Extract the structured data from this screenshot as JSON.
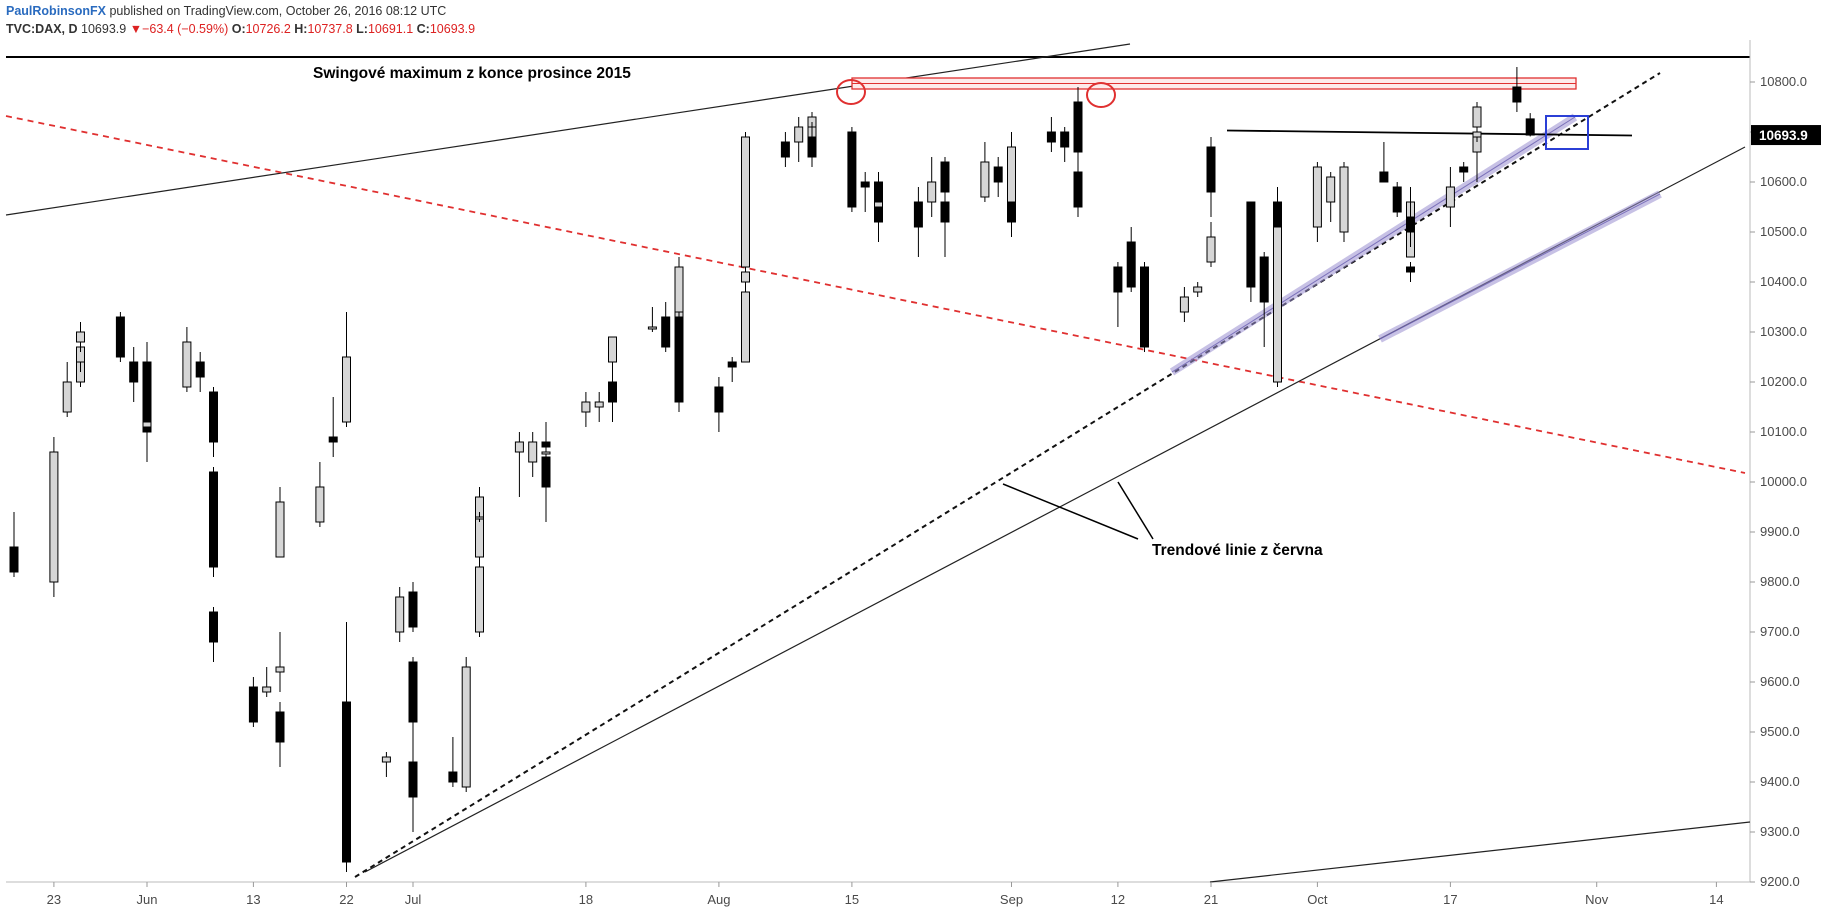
{
  "header": {
    "author": "PaulRobinsonFX",
    "published": "published on TradingView.com, October 26, 2016 08:12 UTC"
  },
  "ohlc": {
    "symbol": "TVC:DAX, D",
    "last": "10693.9",
    "arrow": "▼",
    "change": "−63.4 (−0.59%)",
    "open_label": "O:",
    "open": "10726.2",
    "high_label": "H:",
    "high": "10737.8",
    "low_label": "L:",
    "low": "10691.1",
    "close_label": "C:",
    "close": "10693.9"
  },
  "colors": {
    "bull_fill": "#d6d6d6",
    "bear_fill": "#000000",
    "red_zone": "#e03030",
    "red_dashed": "#e03030",
    "channel": "#9a8fd0",
    "blue_box": "#2b3fd6",
    "price_tag": "#000000"
  },
  "chart_data": {
    "type": "candlestick",
    "symbol": "TVC:DAX",
    "interval": "D",
    "ylim": [
      9200,
      10850
    ],
    "y_ticks": [
      "10800.0",
      "10700.0",
      "10600.0",
      "10500.0",
      "10400.0",
      "10300.0",
      "10200.0",
      "10100.0",
      "10000.0",
      "9900.0",
      "9800.0",
      "9700.0",
      "9600.0",
      "9500.0",
      "9400.0",
      "9300.0",
      "9200.0"
    ],
    "x_ticks": [
      {
        "label": "23",
        "date": "2016-05-23"
      },
      {
        "label": "Jun",
        "date": "2016-06-01"
      },
      {
        "label": "13",
        "date": "2016-06-13"
      },
      {
        "label": "22",
        "date": "2016-06-22"
      },
      {
        "label": "Jul",
        "date": "2016-07-01"
      },
      {
        "label": "18",
        "date": "2016-07-18"
      },
      {
        "label": "Aug",
        "date": "2016-08-01"
      },
      {
        "label": "15",
        "date": "2016-08-15"
      },
      {
        "label": "Sep",
        "date": "2016-09-01"
      },
      {
        "label": "12",
        "date": "2016-09-12"
      },
      {
        "label": "21",
        "date": "2016-09-21"
      },
      {
        "label": "Oct",
        "date": "2016-10-03"
      },
      {
        "label": "17",
        "date": "2016-10-17"
      },
      {
        "label": "Nov",
        "date": "2016-11-01"
      },
      {
        "label": "14",
        "date": "2016-11-14"
      }
    ],
    "last_price_label": "10693.9",
    "candles": [
      {
        "date": "2016-05-20",
        "o": 9870,
        "h": 9940,
        "l": 9810,
        "c": 9820
      },
      {
        "date": "2016-05-23",
        "o": 9800,
        "h": 10090,
        "l": 9770,
        "c": 10060
      },
      {
        "date": "2016-05-24",
        "o": 10140,
        "h": 10240,
        "l": 10130,
        "c": 10200
      },
      {
        "date": "2016-05-25",
        "o": 10200,
        "h": 10280,
        "l": 10190,
        "c": 10250
      },
      {
        "date": "2016-05-26",
        "o": 10240,
        "h": 10290,
        "l": 10220,
        "c": 10270
      },
      {
        "date": "2016-05-27",
        "o": 10280,
        "h": 10320,
        "l": 10260,
        "c": 10300
      },
      {
        "date": "2016-05-30",
        "o": 10330,
        "h": 10340,
        "l": 10240,
        "c": 10250
      },
      {
        "date": "2016-05-31",
        "o": 10240,
        "h": 10270,
        "l": 10160,
        "c": 10200
      },
      {
        "date": "2016-06-01",
        "o": 10200,
        "h": 10230,
        "l": 10160,
        "c": 10210
      },
      {
        "date": "2016-06-02",
        "o": 10240,
        "h": 10280,
        "l": 10040,
        "c": 10100
      },
      {
        "date": "2016-06-03",
        "o": 10110,
        "h": 10130,
        "l": 10080,
        "c": 10120
      },
      {
        "date": "2016-06-06",
        "o": 10190,
        "h": 10310,
        "l": 10180,
        "c": 10280
      },
      {
        "date": "2016-06-07",
        "o": 10240,
        "h": 10260,
        "l": 10180,
        "c": 10210
      },
      {
        "date": "2016-06-08",
        "o": 10180,
        "h": 10190,
        "l": 10050,
        "c": 10080
      },
      {
        "date": "2016-06-09",
        "o": 10020,
        "h": 10030,
        "l": 9810,
        "c": 9830
      },
      {
        "date": "2016-06-10",
        "o": 9740,
        "h": 9750,
        "l": 9640,
        "c": 9680
      },
      {
        "date": "2016-06-13",
        "o": 9590,
        "h": 9610,
        "l": 9510,
        "c": 9520
      },
      {
        "date": "2016-06-14",
        "o": 9580,
        "h": 9630,
        "l": 9570,
        "c": 9590
      },
      {
        "date": "2016-06-15",
        "o": 9540,
        "h": 9560,
        "l": 9430,
        "c": 9480
      },
      {
        "date": "2016-06-16",
        "o": 9620,
        "h": 9700,
        "l": 9580,
        "c": 9630
      },
      {
        "date": "2016-06-17",
        "o": 9850,
        "h": 9990,
        "l": 9850,
        "c": 9960
      },
      {
        "date": "2016-06-20",
        "o": 9920,
        "h": 10040,
        "l": 9910,
        "c": 9990
      },
      {
        "date": "2016-06-21",
        "o": 10090,
        "h": 10170,
        "l": 10050,
        "c": 10080
      },
      {
        "date": "2016-06-22",
        "o": 10120,
        "h": 10340,
        "l": 10110,
        "c": 10250
      },
      {
        "date": "2016-06-23",
        "o": 9560,
        "h": 9720,
        "l": 9230,
        "c": 9240
      },
      {
        "date": "2016-06-24",
        "o": 9520,
        "h": 9530,
        "l": 9220,
        "c": 9270
      },
      {
        "date": "2016-06-27",
        "o": 9440,
        "h": 9460,
        "l": 9410,
        "c": 9450
      },
      {
        "date": "2016-06-28",
        "o": 9700,
        "h": 9790,
        "l": 9680,
        "c": 9770
      },
      {
        "date": "2016-06-29",
        "o": 9780,
        "h": 9800,
        "l": 9700,
        "c": 9710
      },
      {
        "date": "2016-06-30",
        "o": 9640,
        "h": 9650,
        "l": 9500,
        "c": 9520
      },
      {
        "date": "2016-07-01",
        "o": 9440,
        "h": 9530,
        "l": 9300,
        "c": 9370
      },
      {
        "date": "2016-07-04",
        "o": 9420,
        "h": 9490,
        "l": 9390,
        "c": 9400
      },
      {
        "date": "2016-07-05",
        "o": 9390,
        "h": 9650,
        "l": 9380,
        "c": 9630
      },
      {
        "date": "2016-07-06",
        "o": 9700,
        "h": 9840,
        "l": 9690,
        "c": 9830
      },
      {
        "date": "2016-07-07",
        "o": 9850,
        "h": 9990,
        "l": 9840,
        "c": 9970
      },
      {
        "date": "2016-07-08",
        "o": 9930,
        "h": 9940,
        "l": 9920,
        "c": 9930
      },
      {
        "date": "2016-07-11",
        "o": 10060,
        "h": 10100,
        "l": 9970,
        "c": 10080
      },
      {
        "date": "2016-07-12",
        "o": 10040,
        "h": 10100,
        "l": 10010,
        "c": 10080
      },
      {
        "date": "2016-07-13",
        "o": 10080,
        "h": 10120,
        "l": 10030,
        "c": 10070
      },
      {
        "date": "2016-07-14",
        "o": 10050,
        "h": 10060,
        "l": 9920,
        "c": 9990
      },
      {
        "date": "2016-07-15",
        "o": 10060,
        "h": 10090,
        "l": 10050,
        "c": 10060
      },
      {
        "date": "2016-07-18",
        "o": 10140,
        "h": 10180,
        "l": 10110,
        "c": 10160
      },
      {
        "date": "2016-07-19",
        "o": 10150,
        "h": 10180,
        "l": 10120,
        "c": 10160
      },
      {
        "date": "2016-07-20",
        "o": 10180,
        "h": 10210,
        "l": 10120,
        "c": 10160
      },
      {
        "date": "2016-07-21",
        "o": 10200,
        "h": 10240,
        "l": 10140,
        "c": 10180
      },
      {
        "date": "2016-07-22",
        "o": 10240,
        "h": 10290,
        "l": 10210,
        "c": 10290
      },
      {
        "date": "2016-07-25",
        "o": 10310,
        "h": 10350,
        "l": 10300,
        "c": 10310
      },
      {
        "date": "2016-07-26",
        "o": 10330,
        "h": 10360,
        "l": 10260,
        "c": 10270
      },
      {
        "date": "2016-07-27",
        "o": 10330,
        "h": 10380,
        "l": 10320,
        "c": 10350
      },
      {
        "date": "2016-07-28",
        "o": 10340,
        "h": 10450,
        "l": 10330,
        "c": 10430
      },
      {
        "date": "2016-07-29",
        "o": 10330,
        "h": 10340,
        "l": 10140,
        "c": 10160
      },
      {
        "date": "2016-08-01",
        "o": 10190,
        "h": 10210,
        "l": 10100,
        "c": 10140
      },
      {
        "date": "2016-08-02",
        "o": 10240,
        "h": 10250,
        "l": 10200,
        "c": 10230
      },
      {
        "date": "2016-08-03",
        "o": 10240,
        "h": 10400,
        "l": 10240,
        "c": 10380
      },
      {
        "date": "2016-08-04",
        "o": 10400,
        "h": 10430,
        "l": 10390,
        "c": 10420
      },
      {
        "date": "2016-08-05",
        "o": 10430,
        "h": 10700,
        "l": 10430,
        "c": 10690
      },
      {
        "date": "2016-08-08",
        "o": 10680,
        "h": 10700,
        "l": 10630,
        "c": 10650
      },
      {
        "date": "2016-08-09",
        "o": 10680,
        "h": 10730,
        "l": 10640,
        "c": 10710
      },
      {
        "date": "2016-08-10",
        "o": 10670,
        "h": 10720,
        "l": 10660,
        "c": 10720
      },
      {
        "date": "2016-08-11",
        "o": 10710,
        "h": 10740,
        "l": 10690,
        "c": 10730
      },
      {
        "date": "2016-08-12",
        "o": 10690,
        "h": 10720,
        "l": 10630,
        "c": 10650
      },
      {
        "date": "2016-08-15",
        "o": 10700,
        "h": 10710,
        "l": 10540,
        "c": 10550
      },
      {
        "date": "2016-08-16",
        "o": 10600,
        "h": 10620,
        "l": 10540,
        "c": 10590
      },
      {
        "date": "2016-08-17",
        "o": 10600,
        "h": 10620,
        "l": 10510,
        "c": 10520
      },
      {
        "date": "2016-08-18",
        "o": 10560,
        "h": 10590,
        "l": 10480,
        "c": 10550
      },
      {
        "date": "2016-08-19",
        "o": 10550,
        "h": 10600,
        "l": 10500,
        "c": 10560
      },
      {
        "date": "2016-08-22",
        "o": 10560,
        "h": 10590,
        "l": 10450,
        "c": 10510
      },
      {
        "date": "2016-08-23",
        "o": 10560,
        "h": 10650,
        "l": 10530,
        "c": 10600
      },
      {
        "date": "2016-08-24",
        "o": 10640,
        "h": 10650,
        "l": 10540,
        "c": 10580
      },
      {
        "date": "2016-08-25",
        "o": 10560,
        "h": 10580,
        "l": 10460,
        "c": 10520
      },
      {
        "date": "2016-08-26",
        "o": 10540,
        "h": 10560,
        "l": 10450,
        "c": 10530
      },
      {
        "date": "2016-08-29",
        "o": 10570,
        "h": 10680,
        "l": 10560,
        "c": 10640
      },
      {
        "date": "2016-08-30",
        "o": 10630,
        "h": 10650,
        "l": 10570,
        "c": 10600
      },
      {
        "date": "2016-08-31",
        "o": 10620,
        "h": 10690,
        "l": 10560,
        "c": 10630
      },
      {
        "date": "2016-09-01",
        "o": 10620,
        "h": 10690,
        "l": 10490,
        "c": 10520
      },
      {
        "date": "2016-09-02",
        "o": 10560,
        "h": 10700,
        "l": 10530,
        "c": 10670
      },
      {
        "date": "2016-09-05",
        "o": 10700,
        "h": 10730,
        "l": 10660,
        "c": 10680
      },
      {
        "date": "2016-09-06",
        "o": 10700,
        "h": 10710,
        "l": 10640,
        "c": 10670
      },
      {
        "date": "2016-09-07",
        "o": 10690,
        "h": 10760,
        "l": 10650,
        "c": 10730
      },
      {
        "date": "2016-09-08",
        "o": 10760,
        "h": 10790,
        "l": 10580,
        "c": 10660
      },
      {
        "date": "2016-09-09",
        "o": 10620,
        "h": 10640,
        "l": 10530,
        "c": 10550
      },
      {
        "date": "2016-09-12",
        "o": 10430,
        "h": 10440,
        "l": 10310,
        "c": 10380
      },
      {
        "date": "2016-09-13",
        "o": 10480,
        "h": 10510,
        "l": 10380,
        "c": 10390
      },
      {
        "date": "2016-09-14",
        "o": 10410,
        "h": 10430,
        "l": 10350,
        "c": 10380
      },
      {
        "date": "2016-09-15",
        "o": 10400,
        "h": 10430,
        "l": 10340,
        "c": 10350
      },
      {
        "date": "2016-09-16",
        "o": 10430,
        "h": 10440,
        "l": 10260,
        "c": 10270
      },
      {
        "date": "2016-09-19",
        "o": 10340,
        "h": 10390,
        "l": 10320,
        "c": 10370
      },
      {
        "date": "2016-09-20",
        "o": 10380,
        "h": 10400,
        "l": 10370,
        "c": 10390
      },
      {
        "date": "2016-09-21",
        "o": 10440,
        "h": 10520,
        "l": 10430,
        "c": 10490
      },
      {
        "date": "2016-09-22",
        "o": 10650,
        "h": 10690,
        "l": 10530,
        "c": 10580
      },
      {
        "date": "2016-09-23",
        "o": 10670,
        "h": 10680,
        "l": 10610,
        "c": 10630
      },
      {
        "date": "2016-09-26",
        "o": 10560,
        "h": 10560,
        "l": 10360,
        "c": 10390
      },
      {
        "date": "2016-09-27",
        "o": 10450,
        "h": 10460,
        "l": 10270,
        "c": 10360
      },
      {
        "date": "2016-09-28",
        "o": 10430,
        "h": 10440,
        "l": 10400,
        "c": 10410
      },
      {
        "date": "2016-09-29",
        "o": 10560,
        "h": 10590,
        "l": 10390,
        "c": 10410
      },
      {
        "date": "2016-09-30",
        "o": 10200,
        "h": 10530,
        "l": 10190,
        "c": 10510
      },
      {
        "date": "2016-10-03",
        "o": 10510,
        "h": 10640,
        "l": 10480,
        "c": 10630
      },
      {
        "date": "2016-10-04",
        "o": 10560,
        "h": 10620,
        "l": 10520,
        "c": 10610
      },
      {
        "date": "2016-10-05",
        "o": 10600,
        "h": 10630,
        "l": 10560,
        "c": 10620
      },
      {
        "date": "2016-10-06",
        "o": 10600,
        "h": 10640,
        "l": 10480,
        "c": 10500
      },
      {
        "date": "2016-10-07",
        "o": 10500,
        "h": 10640,
        "l": 10490,
        "c": 10630
      },
      {
        "date": "2016-10-10",
        "o": 10620,
        "h": 10680,
        "l": 10600,
        "c": 10600
      },
      {
        "date": "2016-10-11",
        "o": 10590,
        "h": 10600,
        "l": 10530,
        "c": 10540
      },
      {
        "date": "2016-10-12",
        "o": 10430,
        "h": 10440,
        "l": 10400,
        "c": 10420
      },
      {
        "date": "2016-10-13",
        "o": 10450,
        "h": 10580,
        "l": 10450,
        "c": 10560
      },
      {
        "date": "2016-10-14",
        "o": 10530,
        "h": 10590,
        "l": 10470,
        "c": 10500
      },
      {
        "date": "2016-10-17",
        "o": 10550,
        "h": 10630,
        "l": 10510,
        "c": 10590
      },
      {
        "date": "2016-10-18",
        "o": 10630,
        "h": 10640,
        "l": 10600,
        "c": 10620
      },
      {
        "date": "2016-10-19",
        "o": 10660,
        "h": 10740,
        "l": 10600,
        "c": 10690
      },
      {
        "date": "2016-10-20",
        "o": 10690,
        "h": 10720,
        "l": 10680,
        "c": 10700
      },
      {
        "date": "2016-10-21",
        "o": 10710,
        "h": 10760,
        "l": 10700,
        "c": 10750
      },
      {
        "date": "2016-10-24",
        "o": 10790,
        "h": 10830,
        "l": 10740,
        "c": 10760
      },
      {
        "date": "2016-10-25",
        "o": 10726.2,
        "h": 10737.8,
        "l": 10691.1,
        "c": 10693.9
      }
    ],
    "annotations": [
      {
        "text": "Swingové maximum z konce prosince 2015"
      },
      {
        "text": "Trendové linie z června"
      }
    ],
    "levels": {
      "red_zone_high": 10800,
      "red_zone_low": 10778,
      "black_resistance": 10700,
      "top_frame_line": 10860
    }
  }
}
